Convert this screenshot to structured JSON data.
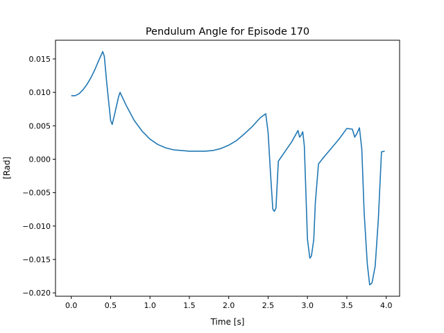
{
  "chart_data": {
    "type": "line",
    "title": "Pendulum Angle for Episode 170",
    "xlabel": "Time [s]",
    "ylabel": "[Rad]",
    "xlim": [
      -0.2,
      4.17
    ],
    "ylim": [
      -0.0205,
      0.0178
    ],
    "grid": false,
    "legend": "none",
    "xticks": [
      0.0,
      0.5,
      1.0,
      1.5,
      2.0,
      2.5,
      3.0,
      3.5,
      4.0
    ],
    "xtick_labels": [
      "0.0",
      "0.5",
      "1.0",
      "1.5",
      "2.0",
      "2.5",
      "3.0",
      "3.5",
      "4.0"
    ],
    "yticks": [
      0.015,
      0.01,
      0.005,
      0.0,
      -0.005,
      -0.01,
      -0.015,
      -0.02
    ],
    "ytick_labels": [
      "0.015",
      "0.010",
      "0.005",
      "0.000",
      "−0.005",
      "−0.010",
      "−0.015",
      "−0.020"
    ],
    "series": [
      {
        "color": "#1f77b4",
        "x": [
          0.0,
          0.05,
          0.1,
          0.15,
          0.2,
          0.25,
          0.3,
          0.35,
          0.4,
          0.42,
          0.45,
          0.5,
          0.52,
          0.56,
          0.6,
          0.62,
          0.7,
          0.8,
          0.9,
          1.0,
          1.1,
          1.2,
          1.3,
          1.4,
          1.5,
          1.6,
          1.7,
          1.8,
          1.9,
          2.0,
          2.1,
          2.2,
          2.3,
          2.4,
          2.47,
          2.5,
          2.53,
          2.56,
          2.58,
          2.6,
          2.63,
          2.7,
          2.8,
          2.88,
          2.9,
          2.92,
          2.94,
          2.96,
          3.0,
          3.03,
          3.05,
          3.08,
          3.1,
          3.14,
          3.2,
          3.3,
          3.4,
          3.5,
          3.57,
          3.6,
          3.63,
          3.66,
          3.69,
          3.72,
          3.76,
          3.79,
          3.82,
          3.86,
          3.9,
          3.94,
          3.98
        ],
        "y": [
          0.0095,
          0.0095,
          0.0098,
          0.0104,
          0.0112,
          0.0122,
          0.0134,
          0.0148,
          0.0161,
          0.0154,
          0.0115,
          0.0058,
          0.0052,
          0.0072,
          0.0093,
          0.01,
          0.008,
          0.0058,
          0.0042,
          0.003,
          0.0022,
          0.0017,
          0.0014,
          0.0013,
          0.0012,
          0.0012,
          0.0012,
          0.0013,
          0.0016,
          0.0021,
          0.0028,
          0.0038,
          0.0049,
          0.0062,
          0.0068,
          0.004,
          -0.002,
          -0.0075,
          -0.0078,
          -0.0073,
          -0.0003,
          0.0009,
          0.0026,
          0.0043,
          0.0033,
          0.0036,
          0.0041,
          0.002,
          -0.012,
          -0.0148,
          -0.0145,
          -0.012,
          -0.0065,
          -0.0007,
          0.0002,
          0.0016,
          0.003,
          0.0046,
          0.0045,
          0.0033,
          0.0039,
          0.0047,
          0.0015,
          -0.008,
          -0.0157,
          -0.0188,
          -0.0185,
          -0.016,
          -0.009,
          0.0011,
          0.0012
        ]
      }
    ]
  }
}
